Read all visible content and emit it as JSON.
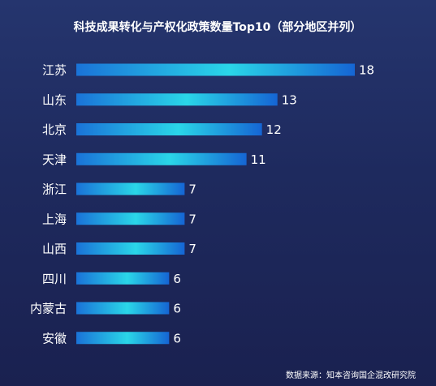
{
  "chart_data": {
    "type": "bar",
    "orientation": "horizontal",
    "title": "科技成果转化与产权化政策数量Top10（部分地区并列）",
    "xlabel": "",
    "ylabel": "",
    "categories": [
      "江苏",
      "山东",
      "北京",
      "天津",
      "浙江",
      "上海",
      "山西",
      "四川",
      "内蒙古",
      "安徽"
    ],
    "values": [
      18,
      13,
      12,
      11,
      7,
      7,
      7,
      6,
      6,
      6
    ],
    "xlim": [
      0,
      18
    ],
    "grid": false,
    "legend": "none",
    "colors": {
      "bar_start": "#1a73d8",
      "bar_mid": "#2ad6e8",
      "bar_end": "#1565d4",
      "background_top": "#25356e",
      "background_bottom": "#1a2150"
    }
  },
  "footer": {
    "source": "数据来源：知本咨询国企混改研究院"
  }
}
